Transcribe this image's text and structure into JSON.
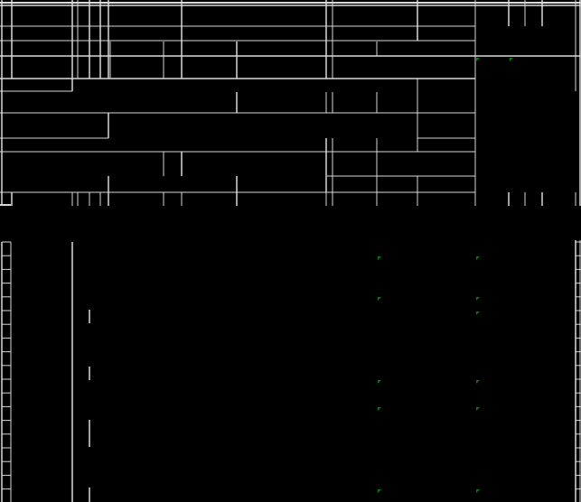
{
  "sheet": {
    "background_color": "#000000",
    "gridline_color": "#d9d9d9",
    "error_indicator_color": "#0a7a0a",
    "error_indicator_icon": "green-corner-triangle-icon"
  }
}
